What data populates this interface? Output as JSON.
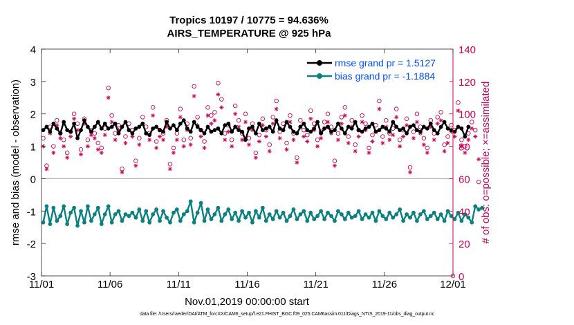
{
  "colors": {
    "rmse": "#000000",
    "bias": "#0a8080",
    "obs": "#cc0055",
    "legend_text": "#0050ff",
    "zero": "#c8a0a8"
  },
  "chart_data": {
    "type": "line",
    "title": "Tropics 10197 / 10775 = 94.636%",
    "subtitle": "AIRS_TEMPERATURE @ 925 hPa",
    "xlabel": "Nov.01,2019 00:00:00 start",
    "ylabel": "rmse and bias (model - observation)",
    "y2label": "# of obs: o=possible; ×=assimilated",
    "ylim": [
      -3,
      4
    ],
    "y2lim": [
      0,
      140
    ],
    "xlim": [
      0,
      30
    ],
    "x_tick_labels": [
      "11/01",
      "11/06",
      "11/11",
      "11/16",
      "11/21",
      "11/26",
      "12/01"
    ],
    "x_tick_days": [
      0,
      5,
      10,
      15,
      20,
      25,
      30
    ],
    "y_ticks": [
      -3,
      -2,
      -1,
      0,
      1,
      2,
      3,
      4
    ],
    "y2_ticks": [
      0,
      20,
      40,
      60,
      80,
      100,
      120,
      140
    ],
    "samples_per_day": 4,
    "series": [
      {
        "name": "rmse",
        "legend": "rmse grand pr = 1.5127",
        "values": [
          1.5,
          1.6,
          1.45,
          1.7,
          1.55,
          1.4,
          1.75,
          1.5,
          1.45,
          1.7,
          1.25,
          1.5,
          1.8,
          1.6,
          1.45,
          1.6,
          1.75,
          1.55,
          1.7,
          1.55,
          1.6,
          1.7,
          1.4,
          1.6,
          1.75,
          1.5,
          1.4,
          1.55,
          1.6,
          1.7,
          1.4,
          1.35,
          1.55,
          1.6,
          1.5,
          1.45,
          1.75,
          1.55,
          1.65,
          1.5,
          1.7,
          1.8,
          1.55,
          1.45,
          1.75,
          1.6,
          1.5,
          1.4,
          1.6,
          1.45,
          1.5,
          1.55,
          1.4,
          1.65,
          1.7,
          1.45,
          1.6,
          1.5,
          1.45,
          1.2,
          1.55,
          1.6,
          1.4,
          1.7,
          1.5,
          1.55,
          1.6,
          1.45,
          1.8,
          1.55,
          1.5,
          1.75,
          1.6,
          1.45,
          1.4,
          1.6,
          1.7,
          1.5,
          1.45,
          1.55,
          1.75,
          1.4,
          1.55,
          1.6,
          1.45,
          1.5,
          1.7,
          1.55,
          1.4,
          1.6,
          1.55,
          1.75,
          1.5,
          1.45,
          1.55,
          1.6,
          1.7,
          1.45,
          1.5,
          1.6,
          1.55,
          1.45,
          1.75,
          1.6,
          1.5,
          1.55,
          1.4,
          1.6,
          1.65,
          1.5,
          1.45,
          1.6,
          1.55,
          1.7,
          1.5,
          1.4,
          1.6,
          1.75,
          1.55,
          1.5,
          1.45,
          1.6,
          1.55,
          1.3,
          1.6
        ]
      },
      {
        "name": "bias",
        "legend": "bias grand pr = -1.1884",
        "values": [
          -1.35,
          -0.85,
          -1.4,
          -0.9,
          -1.3,
          -1.15,
          -0.85,
          -1.4,
          -1.05,
          -0.9,
          -1.45,
          -1.0,
          -1.35,
          -0.85,
          -1.3,
          -1.1,
          -0.9,
          -1.4,
          -1.1,
          -0.85,
          -1.35,
          -1.1,
          -1.0,
          -1.3,
          -1.1,
          -1.15,
          -1.05,
          -1.2,
          -0.95,
          -1.3,
          -1.0,
          -1.35,
          -1.1,
          -0.95,
          -1.3,
          -1.0,
          -1.2,
          -1.35,
          -1.05,
          -0.95,
          -1.3,
          -1.1,
          -1.0,
          -0.7,
          -1.35,
          -1.05,
          -0.75,
          -1.3,
          -0.95,
          -1.25,
          -1.1,
          -0.9,
          -1.3,
          -1.1,
          -0.95,
          -1.25,
          -1.05,
          -1.3,
          -1.0,
          -1.2,
          -1.05,
          -1.35,
          -1.0,
          -1.2,
          -0.9,
          -1.3,
          -1.1,
          -1.25,
          -1.0,
          -1.2,
          -1.05,
          -1.3,
          -1.15,
          -0.95,
          -1.25,
          -1.1,
          -1.0,
          -1.3,
          -1.05,
          -1.25,
          -1.15,
          -1.0,
          -1.25,
          -1.05,
          -1.15,
          -1.3,
          -1.0,
          -1.1,
          -1.25,
          -1.05,
          -1.2,
          -1.15,
          -1.0,
          -1.25,
          -1.1,
          -1.2,
          -1.05,
          -1.3,
          -1.0,
          -1.15,
          -1.25,
          -1.05,
          -1.2,
          -1.1,
          -0.95,
          -1.3,
          -1.1,
          -1.2,
          -1.05,
          -1.3,
          -1.1,
          -1.0,
          -1.25,
          -1.15,
          -1.05,
          -1.25,
          -1.1,
          -1.3,
          -1.0,
          -1.15,
          -1.25,
          -1.05,
          -1.3,
          -1.1,
          -1.2,
          -1.35,
          -0.85,
          -0.95,
          -0.9
        ]
      },
      {
        "name": "possible",
        "axis": "right",
        "marker": "o",
        "values": [
          85,
          68,
          92,
          80,
          96,
          88,
          84,
          76,
          89,
          100,
          94,
          78,
          97,
          84,
          90,
          88,
          82,
          79,
          91,
          116,
          99,
          88,
          93,
          66,
          86,
          94,
          90,
          71,
          85,
          98,
          92,
          88,
          104,
          83,
          90,
          88,
          96,
          69,
          79,
          88,
          103,
          84,
          94,
          85,
          117,
          98,
          90,
          83,
          104,
          99,
          101,
          119,
          109,
          88,
          93,
          84,
          105,
          96,
          88,
          100,
          85,
          94,
          76,
          87,
          97,
          90,
          81,
          98,
          108,
          89,
          94,
          82,
          99,
          88,
          73,
          96,
          90,
          87,
          102,
          94,
          84,
          89,
          95,
          100,
          92,
          71,
          88,
          98,
          104,
          86,
          96,
          81,
          90,
          99,
          94,
          79,
          87,
          93,
          108,
          86,
          96,
          88,
          91,
          103,
          84,
          90,
          97,
          67,
          89,
          100,
          92,
          85,
          79,
          96,
          88,
          98,
          101,
          81,
          86,
          93,
          90,
          107,
          84,
          80,
          88,
          95,
          90,
          58
        ]
      },
      {
        "name": "assimilated",
        "axis": "right",
        "marker": "x",
        "values": [
          80,
          66,
          88,
          76,
          93,
          85,
          80,
          73,
          86,
          97,
          90,
          75,
          94,
          80,
          87,
          85,
          78,
          76,
          87,
          110,
          95,
          84,
          90,
          64,
          82,
          90,
          86,
          68,
          81,
          94,
          88,
          84,
          99,
          79,
          86,
          84,
          92,
          66,
          76,
          84,
          98,
          80,
          90,
          81,
          111,
          93,
          86,
          79,
          99,
          94,
          96,
          112,
          104,
          84,
          89,
          80,
          100,
          92,
          84,
          95,
          81,
          90,
          73,
          83,
          93,
          86,
          77,
          94,
          103,
          85,
          90,
          78,
          95,
          84,
          70,
          92,
          86,
          83,
          97,
          90,
          80,
          85,
          91,
          95,
          88,
          68,
          84,
          94,
          99,
          82,
          92,
          77,
          86,
          95,
          90,
          76,
          83,
          89,
          103,
          82,
          92,
          84,
          87,
          98,
          80,
          86,
          93,
          64,
          85,
          95,
          88,
          81,
          76,
          92,
          84,
          94,
          96,
          77,
          82,
          89,
          86,
          102,
          80,
          76,
          84,
          91,
          86,
          72
        ]
      }
    ]
  },
  "footer": "data file: /Users/raeder/DAI/ATM_forcXX/CAM6_setup/f.e21.FHIST_BGC.f09_025.CAM6assim.011/Diags_NTrS_2019-11/obs_diag_output.nc"
}
